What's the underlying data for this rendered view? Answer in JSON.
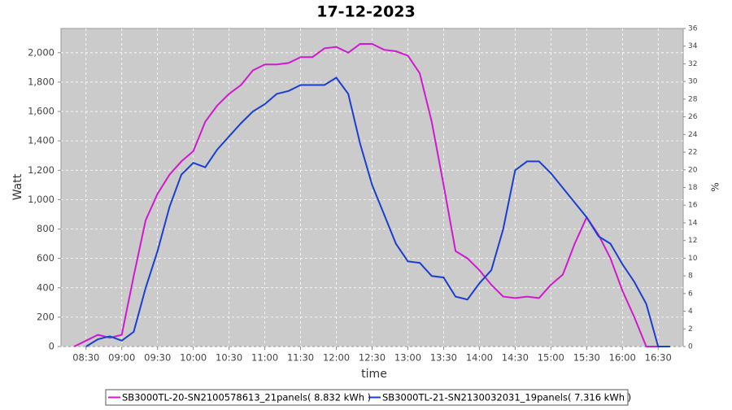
{
  "chart_data": {
    "type": "line",
    "title": "17-12-2023",
    "x_label": "time",
    "y_label": "Watt",
    "y2_label": "%",
    "x": [
      "08:20",
      "08:30",
      "08:40",
      "08:50",
      "09:00",
      "09:10",
      "09:20",
      "09:30",
      "09:40",
      "09:50",
      "10:00",
      "10:10",
      "10:20",
      "10:30",
      "10:40",
      "10:50",
      "11:00",
      "11:10",
      "11:20",
      "11:30",
      "11:40",
      "11:50",
      "12:00",
      "12:10",
      "12:20",
      "12:30",
      "12:40",
      "12:50",
      "13:00",
      "13:10",
      "13:20",
      "13:30",
      "13:40",
      "13:50",
      "14:00",
      "14:10",
      "14:20",
      "14:30",
      "14:40",
      "14:50",
      "15:00",
      "15:10",
      "15:20",
      "15:30",
      "15:40",
      "15:50",
      "16:00",
      "16:10",
      "16:20",
      "16:30",
      "16:40",
      "16:50"
    ],
    "series": [
      {
        "name": "SB3000TL-20-SN2100578613_21panels( 8.832 kWh )",
        "color": "#d01ad0",
        "values": [
          0,
          40,
          80,
          60,
          80,
          480,
          860,
          1040,
          1170,
          1260,
          1330,
          1530,
          1640,
          1720,
          1780,
          1880,
          1920,
          1920,
          1930,
          1970,
          1970,
          2030,
          2040,
          2000,
          2060,
          2060,
          2020,
          2010,
          1980,
          1860,
          1530,
          1100,
          650,
          600,
          520,
          420,
          340,
          330,
          340,
          330,
          420,
          490,
          700,
          880,
          760,
          600,
          380,
          200,
          0,
          0,
          null,
          null
        ]
      },
      {
        "name": "SB3000TL-21-SN2130032031_19panels( 7.316 kWh )",
        "color": "#1a3fd0",
        "values": [
          null,
          0,
          50,
          70,
          40,
          100,
          400,
          650,
          950,
          1170,
          1250,
          1220,
          1340,
          1430,
          1520,
          1600,
          1650,
          1720,
          1740,
          1780,
          1780,
          1780,
          1830,
          1720,
          1380,
          1100,
          900,
          700,
          580,
          570,
          480,
          470,
          340,
          320,
          430,
          520,
          800,
          1200,
          1260,
          1260,
          1180,
          1080,
          980,
          880,
          750,
          700,
          560,
          440,
          290,
          0,
          0,
          null
        ]
      }
    ],
    "xlim": [
      "08:09",
      "16:51"
    ],
    "xticks": [
      "08:30",
      "09:00",
      "09:30",
      "10:00",
      "10:30",
      "11:00",
      "11:30",
      "12:00",
      "12:30",
      "13:00",
      "13:30",
      "14:00",
      "14:30",
      "15:00",
      "15:30",
      "16:00",
      "16:30"
    ],
    "ylim": [
      0,
      2165
    ],
    "yticks": [
      0,
      200,
      400,
      600,
      800,
      {
        "value": 1000,
        "label": "1,000"
      },
      {
        "value": 1200,
        "label": "1,200"
      },
      {
        "value": 1400,
        "label": "1,400"
      },
      {
        "value": 1600,
        "label": "1,600"
      },
      {
        "value": 1800,
        "label": "1,800"
      },
      {
        "value": 2000,
        "label": "2,000"
      }
    ],
    "y2lim": [
      0,
      36
    ],
    "y2ticks": [
      0,
      2,
      4,
      6,
      8,
      10,
      12,
      14,
      16,
      18,
      20,
      22,
      24,
      26,
      28,
      30,
      32,
      34,
      36
    ],
    "grid": true,
    "legend": "bottom"
  }
}
